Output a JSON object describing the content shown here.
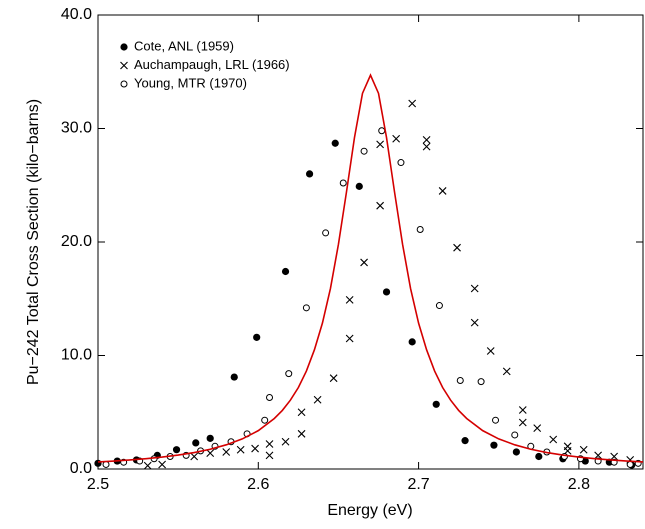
{
  "chart_data": {
    "type": "scatter",
    "x_label": "Energy (eV)",
    "y_label": "Pu−242 Total Cross Section (kilo−barns)",
    "xlim": [
      2.5,
      2.84
    ],
    "ylim": [
      0,
      40
    ],
    "xticks": [
      2.5,
      2.6,
      2.7,
      2.8
    ],
    "yticks": [
      {
        "value": 0,
        "label": "0.0"
      },
      {
        "value": 10,
        "label": "10.0"
      },
      {
        "value": 20,
        "label": "20.0"
      },
      {
        "value": 30,
        "label": "30.0"
      },
      {
        "value": 40,
        "label": "40.0"
      }
    ],
    "legend": "upper left",
    "series": [
      {
        "name": "Cote, ANL (1959)",
        "marker": "filled",
        "color": "#000000",
        "x": [
          2.5,
          2.512,
          2.524,
          2.537,
          2.549,
          2.561,
          2.57,
          2.585,
          2.599,
          2.617,
          2.632,
          2.648,
          2.663,
          2.68,
          2.696,
          2.711,
          2.729,
          2.747,
          2.761,
          2.775,
          2.79,
          2.804,
          2.819,
          2.833
        ],
        "values": [
          0.5,
          0.7,
          0.8,
          1.2,
          1.7,
          2.3,
          2.7,
          8.1,
          11.6,
          17.4,
          26.0,
          28.7,
          24.9,
          15.6,
          11.2,
          5.7,
          2.5,
          2.1,
          1.5,
          1.1,
          0.9,
          0.7,
          0.6,
          0.35
        ]
      },
      {
        "name": "Auchampaugh, LRL (1966)",
        "marker": "x",
        "color": "#000000",
        "x": [
          2.531,
          2.54,
          2.56,
          2.57,
          2.58,
          2.589,
          2.598,
          2.607,
          2.607,
          2.617,
          2.627,
          2.627,
          2.637,
          2.647,
          2.657,
          2.657,
          2.666,
          2.676,
          2.676,
          2.686,
          2.696,
          2.705,
          2.705,
          2.715,
          2.724,
          2.735,
          2.735,
          2.745,
          2.755,
          2.765,
          2.765,
          2.774,
          2.784,
          2.793,
          2.793,
          2.803,
          2.812,
          2.822,
          2.832
        ],
        "values": [
          0.3,
          0.4,
          1.1,
          1.4,
          1.5,
          1.7,
          1.8,
          2.2,
          1.2,
          2.4,
          5.0,
          3.1,
          6.1,
          8.0,
          11.5,
          14.9,
          18.2,
          23.2,
          28.6,
          29.1,
          32.2,
          29.0,
          28.4,
          24.5,
          19.5,
          15.9,
          12.9,
          10.4,
          8.6,
          5.2,
          4.1,
          3.6,
          2.6,
          2.0,
          1.6,
          1.7,
          1.2,
          1.1,
          0.8
        ]
      },
      {
        "name": "Young, MTR (1970)",
        "marker": "open",
        "color": "#000000",
        "x": [
          2.505,
          2.516,
          2.526,
          2.535,
          2.545,
          2.555,
          2.564,
          2.573,
          2.583,
          2.593,
          2.604,
          2.607,
          2.619,
          2.63,
          2.642,
          2.653,
          2.666,
          2.677,
          2.689,
          2.701,
          2.713,
          2.726,
          2.739,
          2.748,
          2.76,
          2.77,
          2.78,
          2.791,
          2.801,
          2.812,
          2.822,
          2.832,
          2.837
        ],
        "values": [
          0.4,
          0.6,
          0.7,
          0.9,
          1.1,
          1.2,
          1.6,
          2.0,
          2.4,
          3.1,
          4.3,
          6.3,
          8.4,
          14.2,
          20.8,
          25.2,
          28.0,
          29.8,
          27.0,
          21.1,
          14.4,
          7.8,
          7.7,
          4.3,
          3.0,
          2.0,
          1.5,
          1.1,
          0.9,
          0.7,
          0.6,
          0.4,
          0.5
        ]
      },
      {
        "marker": "line",
        "color": "#d40000",
        "x": [
          2.5,
          2.51,
          2.52,
          2.53,
          2.54,
          2.55,
          2.56,
          2.57,
          2.58,
          2.59,
          2.6,
          2.61,
          2.615,
          2.62,
          2.625,
          2.63,
          2.635,
          2.64,
          2.645,
          2.65,
          2.655,
          2.66,
          2.665,
          2.67,
          2.675,
          2.68,
          2.685,
          2.69,
          2.695,
          2.7,
          2.705,
          2.71,
          2.715,
          2.72,
          2.725,
          2.73,
          2.74,
          2.75,
          2.76,
          2.77,
          2.78,
          2.79,
          2.8,
          2.81,
          2.82,
          2.83,
          2.84
        ],
        "values": [
          0.62,
          0.7,
          0.8,
          0.91,
          1.05,
          1.23,
          1.45,
          1.74,
          2.13,
          2.65,
          3.38,
          4.45,
          5.16,
          6.06,
          7.18,
          8.63,
          10.5,
          12.85,
          15.9,
          19.8,
          24.4,
          29.2,
          33.1,
          34.7,
          33.1,
          29.2,
          24.4,
          19.8,
          15.9,
          12.85,
          10.5,
          8.63,
          7.18,
          6.06,
          5.16,
          4.45,
          3.38,
          2.65,
          2.13,
          1.74,
          1.45,
          1.23,
          1.05,
          0.91,
          0.8,
          0.7,
          0.62
        ]
      }
    ]
  }
}
